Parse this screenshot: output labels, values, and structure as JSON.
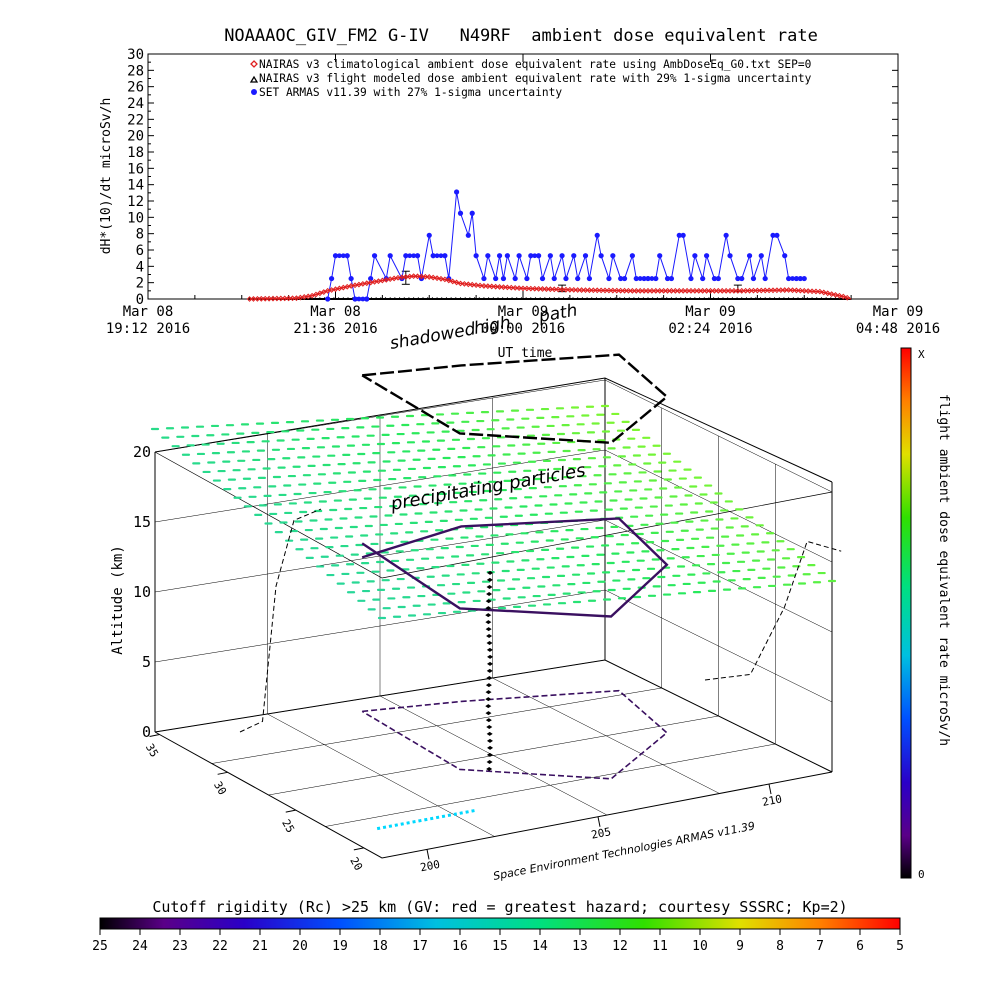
{
  "colors": {
    "nairas_clim": "#e02020",
    "nairas_flight": "#000000",
    "armas": "#1a1aff",
    "track": "#3a1060",
    "cutoff_field": "#2ee6b0"
  },
  "chart_data": [
    {
      "type": "line",
      "title": "NOAAAOC_GIV_FM2 G-IV   N49RF  ambient dose equivalent rate",
      "ylabel": "dH*(10)/dt microSv/h",
      "xlabel": "UT time",
      "ylim": [
        0,
        30
      ],
      "yticks": [
        0,
        2,
        4,
        6,
        8,
        10,
        12,
        14,
        16,
        18,
        20,
        22,
        24,
        26,
        28,
        30
      ],
      "xlim": [
        0,
        9.6
      ],
      "x_unit": "hours since Mar 08 19:12 2016",
      "xticks": [
        {
          "x": 0.0,
          "line1": "Mar 08",
          "line2": "19:12 2016"
        },
        {
          "x": 2.4,
          "line1": "Mar 08",
          "line2": "21:36 2016"
        },
        {
          "x": 4.8,
          "line1": "Mar 09",
          "line2": "00:00 2016"
        },
        {
          "x": 7.2,
          "line1": "Mar 09",
          "line2": "02:24 2016"
        },
        {
          "x": 9.6,
          "line1": "Mar 09",
          "line2": "04:48 2016"
        }
      ],
      "legend_position": "top-center",
      "series": [
        {
          "name": "NAIRAS v3 climatological ambient dose equivalent rate using AmbDoseEq_G0.txt SEP=0",
          "marker": "diamond",
          "x": [
            1.3,
            1.9,
            2.1,
            2.3,
            2.6,
            2.9,
            3.2,
            3.4,
            3.6,
            3.8,
            4.0,
            4.3,
            4.8,
            5.5,
            6.2,
            6.9,
            7.6,
            8.2,
            8.6,
            8.9,
            9.0
          ],
          "y": [
            0,
            0.1,
            0.4,
            1.0,
            1.6,
            2.1,
            2.6,
            2.8,
            2.7,
            2.4,
            1.9,
            1.6,
            1.3,
            1.1,
            1.0,
            1.0,
            1.0,
            1.1,
            0.9,
            0.3,
            0
          ]
        },
        {
          "name": "NAIRAS v3 flight modeled dose ambient equivalent rate with 29% 1-sigma uncertainty",
          "marker": "triangle",
          "x": [
            1.3,
            9.0
          ],
          "y": [
            0,
            0
          ],
          "error_bars": [
            {
              "x": 3.3,
              "y": 2.6,
              "err": 0.8
            },
            {
              "x": 5.3,
              "y": 1.3,
              "err": 0.4
            },
            {
              "x": 7.55,
              "y": 1.3,
              "err": 0.4
            }
          ]
        },
        {
          "name": "SET ARMAS v11.39 with 27% 1-sigma uncertainty",
          "marker": "dot",
          "x": [
            2.3,
            2.35,
            2.4,
            2.55,
            2.6,
            2.65,
            2.8,
            2.85,
            2.9,
            3.05,
            3.1,
            3.25,
            3.3,
            3.45,
            3.5,
            3.6,
            3.65,
            3.8,
            3.85,
            3.95,
            4.0,
            4.1,
            4.15,
            4.2,
            4.3,
            4.35,
            4.45,
            4.5,
            4.55,
            4.6,
            4.7,
            4.75,
            4.85,
            4.9,
            5.0,
            5.05,
            5.15,
            5.2,
            5.3,
            5.35,
            5.45,
            5.5,
            5.6,
            5.65,
            5.75,
            5.8,
            5.9,
            5.95,
            6.05,
            6.1,
            6.2,
            6.25,
            6.35,
            6.4,
            6.5,
            6.55,
            6.65,
            6.7,
            6.8,
            6.85,
            6.95,
            7.0,
            7.1,
            7.15,
            7.25,
            7.3,
            7.4,
            7.45,
            7.55,
            7.6,
            7.7,
            7.75,
            7.85,
            7.9,
            8.0,
            8.05,
            8.15,
            8.2,
            8.3,
            8.35,
            8.4
          ],
          "y": [
            0,
            2.5,
            5.3,
            5.3,
            2.5,
            0,
            0,
            2.5,
            5.3,
            2.5,
            5.3,
            2.5,
            5.3,
            5.3,
            2.5,
            7.8,
            5.3,
            5.3,
            2.5,
            13.1,
            10.5,
            7.8,
            10.5,
            5.3,
            2.5,
            5.3,
            2.5,
            5.3,
            2.5,
            5.3,
            2.5,
            5.3,
            2.5,
            5.3,
            5.3,
            2.5,
            5.3,
            2.5,
            5.3,
            2.5,
            5.3,
            2.5,
            5.3,
            2.5,
            7.8,
            5.3,
            2.5,
            5.3,
            2.5,
            2.5,
            5.3,
            2.5,
            2.5,
            2.5,
            2.5,
            5.3,
            2.5,
            2.5,
            7.8,
            7.8,
            2.5,
            5.3,
            2.5,
            5.3,
            2.5,
            2.5,
            7.8,
            5.3,
            2.5,
            2.5,
            5.3,
            2.5,
            5.3,
            2.5,
            7.8,
            7.8,
            5.3,
            2.5,
            2.5,
            2.5,
            2.5
          ]
        }
      ]
    },
    {
      "type": "scatter",
      "title": "",
      "zlabel": "Altitude (km)",
      "zlim": [
        0,
        20
      ],
      "zticks": [
        0,
        5,
        10,
        15,
        20
      ],
      "lat_ticks": [
        20,
        25,
        30,
        35
      ],
      "lat_tick_labels": [
        "20",
        "25",
        "30",
        "35"
      ],
      "lon_ticks": [
        200,
        205,
        210
      ],
      "lon_tick_labels": [
        "200",
        "205",
        "210"
      ],
      "annotations": [
        "shadowed",
        "high",
        "path",
        "precipitating particles"
      ],
      "credit": "Space Environment Technologies ARMAS v11.39",
      "description_3d": "Flight track of altitude vs lat/lon with dose-rate colored points over a field of cutoff rigidity points at 20 km",
      "track_altitude_km": [
        11,
        12.5,
        12.3,
        12.0,
        11.6,
        11.5,
        12.0,
        12.3,
        12.4,
        11.8,
        11.5,
        11.0
      ]
    }
  ],
  "colorbar_right": {
    "label": "flight ambient dose equivalent rate microSv/h",
    "top_label": "X",
    "bottom_label": "0"
  },
  "colorbar_bottom": {
    "title": "Cutoff rigidity (Rc) >25 km (GV: red = greatest hazard; courtesy SSSRC; Kp=2)",
    "ticks": [
      "25",
      "24",
      "23",
      "22",
      "21",
      "20",
      "19",
      "18",
      "17",
      "16",
      "15",
      "14",
      "13",
      "12",
      "11",
      "10",
      "9",
      "8",
      "7",
      "6",
      "5"
    ]
  }
}
